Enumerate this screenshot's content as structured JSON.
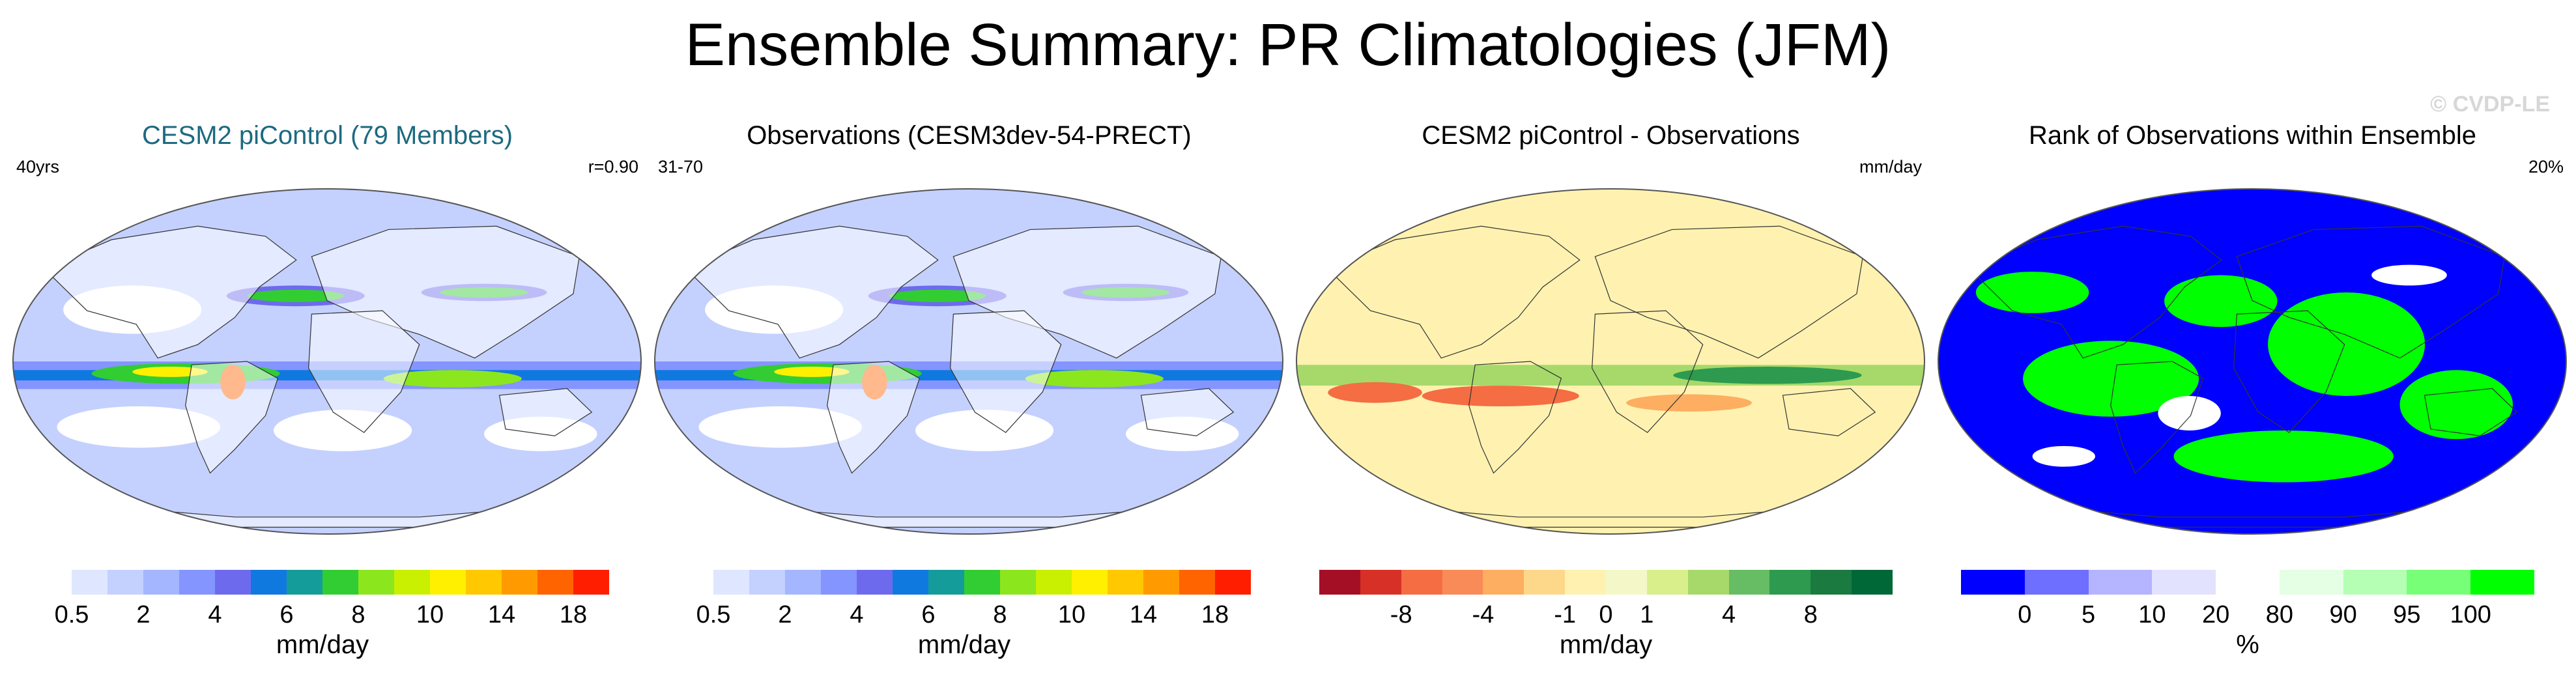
{
  "title": "Ensemble Summary: PR Climatologies (JFM)",
  "watermark": "© CVDP-LE",
  "colors": {
    "teal_title": "#1c6a80",
    "ocean_low": "#dfe6ff",
    "land_dry": "#ffffff"
  },
  "panels": [
    {
      "title": "CESM2 piControl (79 Members)",
      "left_label": "40yrs",
      "right_label": "r=0.90",
      "map_style": "precip",
      "colorbar": {
        "colors": [
          "#ffffff",
          "#dfe6ff",
          "#c4d1ff",
          "#a4b6ff",
          "#8495ff",
          "#6e6aee",
          "#0f79e0",
          "#149c9a",
          "#32cd32",
          "#8ce61e",
          "#c8f000",
          "#fff000",
          "#ffc800",
          "#ff9b00",
          "#ff6400",
          "#ff1e00"
        ],
        "ticks": [
          "0.5",
          "2",
          "4",
          "6",
          "8",
          "10",
          "14",
          "18"
        ],
        "unit": "mm/day"
      }
    },
    {
      "title": "Observations (CESM3dev-54-PRECT)",
      "left_label": "31-70",
      "right_label": "",
      "map_style": "precip",
      "colorbar": {
        "colors": [
          "#ffffff",
          "#dfe6ff",
          "#c4d1ff",
          "#a4b6ff",
          "#8495ff",
          "#6e6aee",
          "#0f79e0",
          "#149c9a",
          "#32cd32",
          "#8ce61e",
          "#c8f000",
          "#fff000",
          "#ffc800",
          "#ff9b00",
          "#ff6400",
          "#ff1e00"
        ],
        "ticks": [
          "0.5",
          "2",
          "4",
          "6",
          "8",
          "10",
          "14",
          "18"
        ],
        "unit": "mm/day"
      }
    },
    {
      "title": "CESM2 piControl - Observations",
      "left_label": "",
      "right_label": "mm/day",
      "map_style": "diff",
      "colorbar": {
        "colors": [
          "#a50f26",
          "#d73027",
          "#f46d43",
          "#f98b58",
          "#fdae61",
          "#fdd88a",
          "#fff2b0",
          "#f4f8c8",
          "#d9ef8b",
          "#a6d96a",
          "#66bd63",
          "#2d9a4f",
          "#1a7a40",
          "#006837"
        ],
        "ticks": [
          "-8",
          "-4",
          "-1",
          "0",
          "1",
          "4",
          "8"
        ],
        "unit": "mm/day"
      }
    },
    {
      "title": "Rank of Observations within Ensemble",
      "left_label": "",
      "right_label": "20%",
      "map_style": "rank",
      "colorbar": {
        "colors": [
          "#0000ff",
          "#6e6eff",
          "#b4b4ff",
          "#e2e2ff",
          "#ffffff",
          "#e4ffe4",
          "#b4ffb4",
          "#78ff78",
          "#00ff00"
        ],
        "ticks": [
          "0",
          "5",
          "10",
          "20",
          "80",
          "90",
          "95",
          "100"
        ],
        "unit": "%"
      }
    }
  ]
}
